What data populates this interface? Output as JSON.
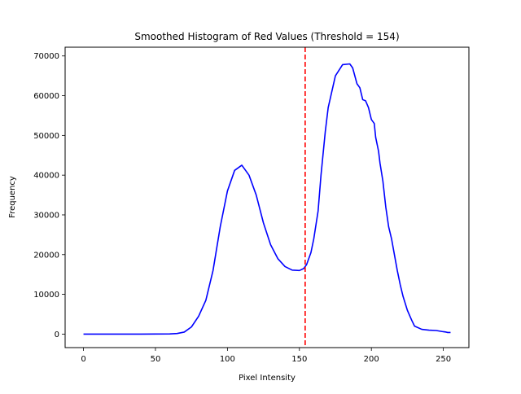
{
  "chart_data": {
    "type": "line",
    "title": "Smoothed Histogram of Red Values (Threshold = 154)",
    "xlabel": "Pixel Intensity",
    "ylabel": "Frequency",
    "xlim": [
      -12.75,
      267.75
    ],
    "ylim": [
      -3400,
      72200
    ],
    "xticks": [
      0,
      50,
      100,
      150,
      200,
      250
    ],
    "xtick_labels": [
      "0",
      "50",
      "100",
      "150",
      "200",
      "250"
    ],
    "yticks": [
      0,
      10000,
      20000,
      30000,
      40000,
      50000,
      60000,
      70000
    ],
    "ytick_labels": [
      "0",
      "10000",
      "20000",
      "30000",
      "40000",
      "50000",
      "60000",
      "70000"
    ],
    "grid": false,
    "series": [
      {
        "color": "#0000ff",
        "x": [
          0,
          20,
          40,
          60,
          65,
          70,
          75,
          80,
          85,
          90,
          95,
          100,
          105,
          110,
          115,
          120,
          125,
          130,
          135,
          140,
          145,
          150,
          153,
          155,
          158,
          160,
          163,
          165,
          168,
          170,
          175,
          180,
          185,
          187,
          190,
          192,
          194,
          196,
          198,
          200,
          202,
          203,
          205,
          206,
          208,
          210,
          212,
          214,
          215,
          217,
          218,
          220,
          222,
          225,
          228,
          230,
          235,
          240,
          245,
          250,
          252,
          253,
          255
        ],
        "y": [
          0,
          0,
          0,
          50,
          150,
          500,
          1800,
          4500,
          8500,
          16000,
          27000,
          36000,
          41200,
          42500,
          40000,
          35000,
          28000,
          22500,
          19000,
          17000,
          16100,
          16000,
          16500,
          17500,
          20500,
          24000,
          31000,
          40000,
          51000,
          57000,
          65000,
          67800,
          68000,
          67000,
          63000,
          62000,
          59000,
          58700,
          57000,
          54000,
          53000,
          49500,
          46000,
          43000,
          38500,
          32000,
          27000,
          24000,
          22000,
          18000,
          16000,
          12500,
          9500,
          6000,
          3500,
          2000,
          1200,
          1000,
          900,
          600,
          500,
          400,
          400
        ]
      }
    ],
    "threshold": {
      "value": 154,
      "color": "#ff0000",
      "style": "dashed"
    }
  }
}
